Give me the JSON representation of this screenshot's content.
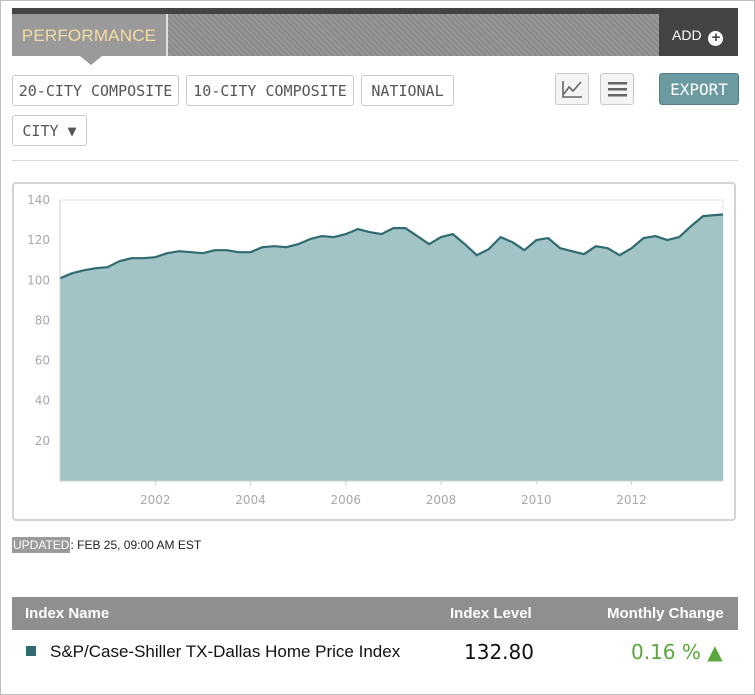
{
  "header": {
    "tab_label": "PERFORMANCE",
    "add_label": "ADD"
  },
  "filters": {
    "buttons": [
      "20-CITY COMPOSITE",
      "10-CITY COMPOSITE",
      "NATIONAL"
    ],
    "city_label": "CITY ▼"
  },
  "toolbar": {
    "chart_icon": "line-chart-icon",
    "table_icon": "list-icon",
    "export_label": "EXPORT"
  },
  "chart_data": {
    "type": "area",
    "title": "",
    "xlabel": "",
    "ylabel": "",
    "ylim": [
      0,
      140
    ],
    "yticks": [
      20,
      40,
      60,
      80,
      100,
      120,
      140
    ],
    "xticks": [
      2002,
      2004,
      2006,
      2008,
      2010,
      2012
    ],
    "xlim": [
      2000.0,
      2013.92
    ],
    "grid": false,
    "series": [
      {
        "color": "#2f6b70",
        "fill": "#a3c4c6",
        "x": [
          2000.0,
          2000.25,
          2000.5,
          2000.75,
          2001.0,
          2001.25,
          2001.5,
          2001.75,
          2002.0,
          2002.25,
          2002.5,
          2002.75,
          2003.0,
          2003.25,
          2003.5,
          2003.75,
          2004.0,
          2004.25,
          2004.5,
          2004.75,
          2005.0,
          2005.25,
          2005.5,
          2005.75,
          2006.0,
          2006.25,
          2006.5,
          2006.75,
          2007.0,
          2007.25,
          2007.5,
          2007.75,
          2008.0,
          2008.25,
          2008.5,
          2008.75,
          2009.0,
          2009.25,
          2009.5,
          2009.75,
          2010.0,
          2010.25,
          2010.5,
          2010.75,
          2011.0,
          2011.25,
          2011.5,
          2011.75,
          2012.0,
          2012.25,
          2012.5,
          2012.75,
          2013.0,
          2013.25,
          2013.5,
          2013.75,
          2013.92
        ],
        "y": [
          101,
          103.5,
          105,
          106,
          106.5,
          109.5,
          111,
          111,
          111.5,
          113.5,
          114.5,
          114,
          113.5,
          115,
          115,
          114,
          114,
          116.5,
          117,
          116.5,
          118,
          120.5,
          122,
          121.5,
          123,
          125.5,
          124,
          123,
          126,
          126,
          122,
          118,
          121.5,
          123,
          118,
          112.5,
          115.5,
          121.5,
          119,
          115,
          120,
          121,
          116,
          114.5,
          113,
          117,
          116,
          112.5,
          116,
          121,
          122,
          120,
          121.5,
          127,
          132,
          132.5,
          132.8
        ]
      }
    ]
  },
  "updated": {
    "label": "UPDATED",
    "value": ": FEB 25, 09:00 AM EST"
  },
  "table": {
    "headers": {
      "name": "Index Name",
      "level": "Index Level",
      "change": "Monthly Change"
    },
    "rows": [
      {
        "name": "S&P/Case-Shiller TX-Dallas Home Price Index",
        "level": "132.80",
        "change": "0.16 % ▲",
        "swatch_color": "#2f6b70",
        "change_color": "#5aa83c"
      }
    ]
  }
}
